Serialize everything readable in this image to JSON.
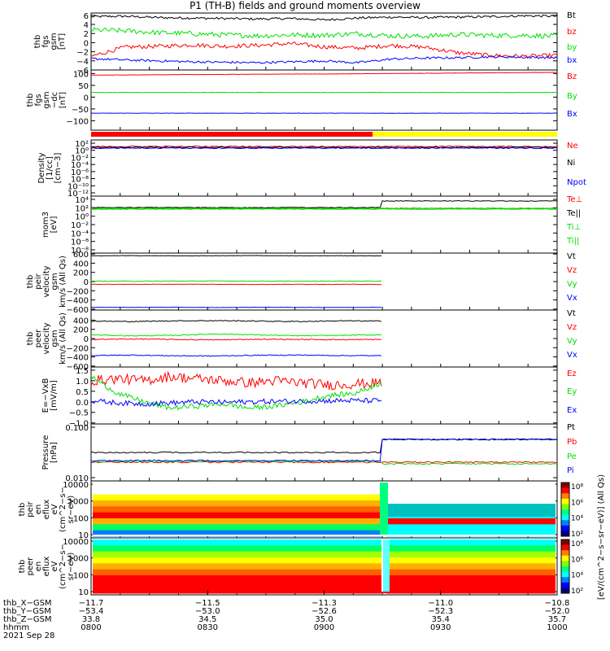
{
  "title": "P1 (TH-B) fields and ground moments overview",
  "colors": {
    "black": "#000000",
    "red": "#ff0000",
    "green": "#00e000",
    "blue": "#0000ff",
    "yellow": "#ffff00"
  },
  "chart_data": [
    {
      "id": "bfield",
      "type": "line",
      "ylabel": [
        "thb",
        "fgs",
        "gsm",
        "[nT]"
      ],
      "yrange": [
        -6,
        6.5
      ],
      "ticks": [
        "6",
        "4",
        "2",
        "0",
        "−2",
        "−4",
        "−6"
      ],
      "tickvals": [
        6,
        4,
        2,
        0,
        -2,
        -4,
        -6
      ],
      "series": [
        {
          "name": "Bt",
          "color": "#000000",
          "values": [
            5.7,
            5.8,
            5.5,
            5.4,
            5.3,
            5.2,
            5.3,
            5.0,
            5.4,
            5.6,
            5.5,
            5.6,
            5.7,
            5.9,
            5.8
          ]
        },
        {
          "name": "bz",
          "color": "#ff0000",
          "values": [
            -3.0,
            -1.0,
            -0.8,
            -0.5,
            -0.8,
            -0.6,
            -0.2,
            -0.9,
            -1.2,
            -0.6,
            -1.0,
            -2.2,
            -2.8,
            -3.0,
            -2.8
          ]
        },
        {
          "name": "by",
          "color": "#00e000",
          "values": [
            2.8,
            2.6,
            2.2,
            2.0,
            1.7,
            1.5,
            1.7,
            1.6,
            2.0,
            1.5,
            1.4,
            1.8,
            1.6,
            1.6,
            1.4
          ]
        },
        {
          "name": "bx",
          "color": "#0000ff",
          "values": [
            -3.5,
            -3.8,
            -4.0,
            -4.2,
            -4.3,
            -4.4,
            -4.2,
            -4.0,
            -4.4,
            -3.6,
            -3.4,
            -3.3,
            -3.1,
            -3.2,
            -3.3
          ]
        }
      ]
    },
    {
      "id": "bfield_dc",
      "type": "line",
      "ylabel": [
        "thb",
        "fgs",
        "gsm",
        "−dc",
        "[nT]"
      ],
      "yrange": [
        -140,
        115
      ],
      "ticks": [
        "100",
        "50",
        "0",
        "−50",
        "−100"
      ],
      "tickvals": [
        100,
        50,
        0,
        -50,
        -100
      ],
      "series": [
        {
          "name": "Bz",
          "color": "#ff0000",
          "values": [
            93,
            94,
            95,
            96,
            96,
            97,
            98,
            98,
            99,
            100,
            101,
            102,
            103,
            104,
            105
          ]
        },
        {
          "name": "By",
          "color": "#00e000",
          "values": [
            20,
            20,
            20,
            20,
            20,
            20,
            20,
            20,
            20,
            20,
            20,
            20,
            20,
            20,
            20
          ]
        },
        {
          "name": "Bx",
          "color": "#0000ff",
          "values": [
            -68,
            -68,
            -68,
            -68,
            -68,
            -68,
            -68,
            -68,
            -68,
            -68,
            -68,
            -68,
            -68,
            -68,
            -68
          ]
        }
      ]
    },
    {
      "id": "density",
      "type": "line",
      "ylabel": [
        "Density",
        "[1/cc]",
        "[cm−3]"
      ],
      "log": true,
      "ticks": [
        "10²",
        "10⁰",
        "10⁻²",
        "10⁻⁴",
        "10⁻⁶",
        "10⁻⁸",
        "10⁻¹⁰",
        "10⁻¹²"
      ],
      "series": [
        {
          "name": "Ne",
          "color": "#ff0000"
        },
        {
          "name": "Ni",
          "color": "#000000"
        },
        {
          "name": "Npot",
          "color": "#0000ff"
        }
      ]
    },
    {
      "id": "temperature",
      "type": "line",
      "ylabel": [
        "mom3",
        "[eV]"
      ],
      "log": true,
      "ticks": [
        "10⁴",
        "10²",
        "10⁰",
        "10⁻²",
        "10⁻⁴",
        "10⁻⁶",
        "10⁻⁸"
      ],
      "series": [
        {
          "name": "Te⊥",
          "color": "#ff0000"
        },
        {
          "name": "Te||",
          "color": "#000000"
        },
        {
          "name": "Ti⊥",
          "color": "#00e000"
        },
        {
          "name": "Ti||",
          "color": "#00e000"
        }
      ]
    },
    {
      "id": "ion_velocity",
      "type": "line",
      "ylabel": [
        "thb",
        "peir",
        "velocity",
        "gsm",
        "km/s (All Qs)"
      ],
      "yrange": [
        -620,
        620
      ],
      "ticks": [
        "600",
        "400",
        "200",
        "0",
        "−200",
        "−400",
        "−600"
      ],
      "tickvals": [
        600,
        400,
        200,
        0,
        -200,
        -400,
        -600
      ],
      "series": [
        {
          "name": "Vt",
          "color": "#000000",
          "values": [
            560,
            565,
            560,
            562,
            565,
            560,
            563,
            560
          ]
        },
        {
          "name": "Vz",
          "color": "#ff0000",
          "values": [
            -60,
            -60,
            -58,
            -60,
            -62,
            -60,
            -60,
            -62
          ]
        },
        {
          "name": "Vy",
          "color": "#00e000",
          "values": [
            10,
            8,
            10,
            12,
            10,
            8,
            10,
            10
          ]
        },
        {
          "name": "Vx",
          "color": "#0000ff",
          "values": [
            -560,
            -562,
            -560,
            -565,
            -560,
            -562,
            -563,
            -560
          ]
        }
      ]
    },
    {
      "id": "electron_velocity",
      "type": "line",
      "ylabel": [
        "thb",
        "peer",
        "velocity",
        "gsm",
        "km/s (All Qs)"
      ],
      "yrange": [
        -620,
        620
      ],
      "ticks": [
        "400",
        "200",
        "0",
        "−200",
        "−400",
        "−600"
      ],
      "tickvals": [
        400,
        200,
        0,
        -200,
        -400,
        -600
      ],
      "series": [
        {
          "name": "Vt",
          "color": "#000000",
          "values": [
            380,
            370,
            385,
            390,
            380,
            370,
            385,
            380
          ]
        },
        {
          "name": "Vz",
          "color": "#ff0000",
          "values": [
            -20,
            -10,
            -20,
            -30,
            -15,
            -20,
            -25,
            -20
          ]
        },
        {
          "name": "Vy",
          "color": "#00e000",
          "values": [
            80,
            60,
            70,
            100,
            80,
            60,
            70,
            80
          ]
        },
        {
          "name": "Vx",
          "color": "#0000ff",
          "values": [
            -370,
            -360,
            -375,
            -380,
            -365,
            -360,
            -370,
            -375
          ]
        }
      ]
    },
    {
      "id": "efield",
      "type": "line",
      "ylabel": [
        "E=−VxB",
        "[mV/m]"
      ],
      "yrange": [
        -1.05,
        1.65
      ],
      "ticks": [
        "1.5",
        "1.0",
        "0.5",
        "0.0",
        "−0.5",
        "−1.0"
      ],
      "tickvals": [
        1.5,
        1.0,
        0.5,
        0.0,
        -0.5,
        -1.0
      ],
      "series": [
        {
          "name": "Ez",
          "color": "#ff0000",
          "values": [
            1.0,
            1.1,
            1.0,
            1.2,
            1.1,
            1.0,
            0.9,
            1.0,
            0.9,
            0.8,
            0.85,
            0.9
          ]
        },
        {
          "name": "Ey",
          "color": "#00e000",
          "values": [
            1.2,
            0.4,
            0.0,
            -0.3,
            -0.2,
            -0.1,
            -0.3,
            -0.2,
            0.0,
            0.3,
            0.4,
            0.9
          ]
        },
        {
          "name": "Ex",
          "color": "#0000ff",
          "values": [
            0.05,
            -0.05,
            -0.1,
            -0.05,
            0.0,
            -0.02,
            0.0,
            0.02,
            0.03,
            0.05,
            0.06,
            0.05
          ]
        }
      ]
    },
    {
      "id": "pressure",
      "type": "line",
      "ylabel": [
        "Pressure",
        "[nPa]"
      ],
      "log": true,
      "ticks": [
        "0.100",
        "0.010"
      ],
      "series": [
        {
          "name": "Pt",
          "color": "#000000"
        },
        {
          "name": "Pb",
          "color": "#ff0000"
        },
        {
          "name": "Pe",
          "color": "#00e000"
        },
        {
          "name": "Pi",
          "color": "#0000ff"
        }
      ]
    },
    {
      "id": "ion_spec",
      "type": "heatmap",
      "ylabel": [
        "thb",
        "peir",
        "en",
        "eflux",
        "eV",
        "(cm^2−s−",
        "sr−eV)"
      ],
      "ticks": [
        "10000",
        "1000",
        "100",
        "10"
      ]
    },
    {
      "id": "electron_spec",
      "type": "heatmap",
      "ylabel": [
        "thb",
        "peer",
        "en",
        "eflux",
        "eV",
        "(cm^2−s−",
        "sr−eV)"
      ],
      "ticks": [
        "10000",
        "1000",
        "100",
        "10"
      ]
    }
  ],
  "colorbar": {
    "ticks": [
      "10⁸",
      "10⁶",
      "10⁴",
      "10²"
    ],
    "label": "[eV/(cm^2−s−sr−eV)] (All Qs)"
  },
  "xaxis": {
    "rows": [
      {
        "label": "thb_X−GSM",
        "values": [
          "−11.7",
          "−11.5",
          "−11.3",
          "−11.0",
          "−10.8"
        ]
      },
      {
        "label": "thb_Y−GSM",
        "values": [
          "−53.4",
          "−53.0",
          "−52.6",
          "−52.3",
          "−52.0"
        ]
      },
      {
        "label": "thb_Z−GSM",
        "values": [
          "33.8",
          "34.5",
          "35.0",
          "35.4",
          "35.7"
        ]
      },
      {
        "label": "hhmm",
        "values": [
          "0800",
          "0830",
          "0900",
          "0930",
          "1000"
        ]
      }
    ],
    "date": "2021 Sep 28"
  }
}
